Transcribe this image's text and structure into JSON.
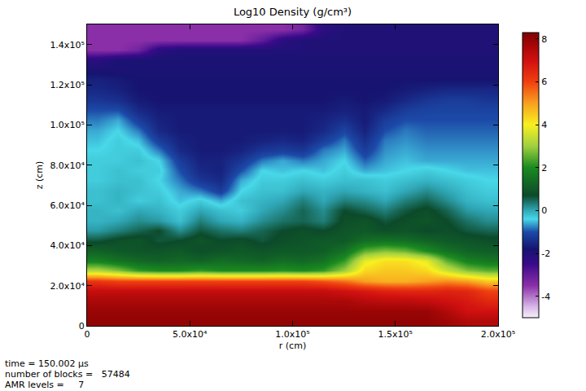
{
  "chart_data": {
    "type": "heatmap",
    "title": "Log10 Density (g/cm³)",
    "xlabel": "r (cm)",
    "ylabel": "z (cm)",
    "x": [
      5000,
      15000,
      25000,
      35000,
      45000,
      55000,
      65000,
      75000,
      85000,
      95000,
      105000,
      115000,
      125000,
      135000,
      145000,
      155000,
      165000,
      175000,
      185000,
      195000
    ],
    "y": [
      2500,
      7500,
      12500,
      17500,
      22500,
      27500,
      32500,
      37500,
      42500,
      47500,
      52500,
      57500,
      62500,
      67500,
      72500,
      77500,
      82500,
      87500,
      92500,
      97500,
      102500,
      107500,
      112500,
      117500,
      122500,
      127500,
      132500,
      137500,
      142500,
      147500
    ],
    "z": [
      [
        8.0,
        8.0,
        8.0,
        8.0,
        8.0,
        8.0,
        8.0,
        8.0,
        8.0,
        8.0,
        8.0,
        8.0,
        8.0,
        8.0,
        8.0,
        8.0,
        8.0,
        7.8,
        7.5,
        7.5
      ],
      [
        7.9,
        7.9,
        7.9,
        7.9,
        7.9,
        7.9,
        7.9,
        7.9,
        7.9,
        7.9,
        7.9,
        7.9,
        7.9,
        7.9,
        7.9,
        7.9,
        7.9,
        7.5,
        7.0,
        7.0
      ],
      [
        7.6,
        7.6,
        7.6,
        7.6,
        7.6,
        7.6,
        7.6,
        7.6,
        7.6,
        7.6,
        7.6,
        7.6,
        7.6,
        7.4,
        7.3,
        7.3,
        7.2,
        7.0,
        6.8,
        6.5
      ],
      [
        7.2,
        7.2,
        7.2,
        7.2,
        7.2,
        7.2,
        7.2,
        7.2,
        7.2,
        7.2,
        7.2,
        7.2,
        7.0,
        6.8,
        6.6,
        6.5,
        6.5,
        6.6,
        6.5,
        6.0
      ],
      [
        6.2,
        6.0,
        6.0,
        6.0,
        6.0,
        6.0,
        6.0,
        6.0,
        6.0,
        6.0,
        6.0,
        5.8,
        5.5,
        5.0,
        4.8,
        4.8,
        5.0,
        5.2,
        5.0,
        4.5
      ],
      [
        3.2,
        2.8,
        2.2,
        2.0,
        2.0,
        2.2,
        2.0,
        2.0,
        2.0,
        2.1,
        2.0,
        2.2,
        3.0,
        4.3,
        4.5,
        4.5,
        4.3,
        3.5,
        2.8,
        2.5
      ],
      [
        1.8,
        1.5,
        1.3,
        1.2,
        1.3,
        1.2,
        1.4,
        1.3,
        1.2,
        1.4,
        1.3,
        1.5,
        2.2,
        3.8,
        4.2,
        4.2,
        3.8,
        2.5,
        1.8,
        1.6
      ],
      [
        1.2,
        1.0,
        0.9,
        0.9,
        1.0,
        0.8,
        0.9,
        1.0,
        0.9,
        1.0,
        1.0,
        1.1,
        1.5,
        2.5,
        2.8,
        2.6,
        2.0,
        1.5,
        1.2,
        1.1
      ],
      [
        0.6,
        0.8,
        0.9,
        0.6,
        0.7,
        0.9,
        0.7,
        0.8,
        0.6,
        0.8,
        0.9,
        1.0,
        1.0,
        1.4,
        1.5,
        1.4,
        1.2,
        1.0,
        0.9,
        0.8
      ],
      [
        0.1,
        0.3,
        0.5,
        0.7,
        0.2,
        0.6,
        0.4,
        0.3,
        0.5,
        0.7,
        0.8,
        0.7,
        0.9,
        1.0,
        0.8,
        0.9,
        0.7,
        0.8,
        0.6,
        0.5
      ],
      [
        -0.1,
        0.0,
        0.2,
        0.1,
        -0.2,
        0.3,
        0.0,
        -0.1,
        0.2,
        0.4,
        0.5,
        0.3,
        0.8,
        0.9,
        0.6,
        0.8,
        0.9,
        0.7,
        0.4,
        0.2
      ],
      [
        -0.1,
        -0.2,
        0.0,
        -0.1,
        -0.3,
        0.0,
        -0.2,
        -0.3,
        0.0,
        0.2,
        0.5,
        0.2,
        0.7,
        0.5,
        0.3,
        0.6,
        0.8,
        0.5,
        0.1,
        0.0
      ],
      [
        -0.2,
        -0.1,
        -0.3,
        -0.2,
        -0.5,
        -0.3,
        -0.6,
        -0.2,
        -0.1,
        0.0,
        0.3,
        0.0,
        0.3,
        0.2,
        0.0,
        0.3,
        0.5,
        0.2,
        -0.1,
        -0.2
      ],
      [
        -0.2,
        -0.1,
        -0.2,
        -0.3,
        -0.6,
        -0.8,
        -1.2,
        -0.4,
        -0.2,
        -0.2,
        0.0,
        -0.1,
        0.0,
        -0.1,
        -0.2,
        0.0,
        0.2,
        0.0,
        -0.2,
        -0.3
      ],
      [
        -0.3,
        -0.2,
        -0.2,
        -0.4,
        -0.8,
        -1.3,
        -1.5,
        -0.6,
        -0.3,
        -0.3,
        -0.2,
        -0.3,
        -0.2,
        -0.2,
        -0.3,
        -0.2,
        -0.1,
        -0.2,
        -0.3,
        -0.4
      ],
      [
        -0.3,
        -0.2,
        -0.3,
        -0.3,
        -1.0,
        -1.5,
        -1.6,
        -1.0,
        -0.4,
        -0.5,
        -0.4,
        -0.5,
        -0.3,
        -0.6,
        -0.5,
        -0.4,
        -0.3,
        -0.4,
        -0.5,
        -0.5
      ],
      [
        -0.3,
        -0.3,
        -0.2,
        -0.4,
        -1.2,
        -1.6,
        -1.6,
        -1.3,
        -0.8,
        -0.6,
        -0.8,
        -0.6,
        -0.4,
        -0.9,
        -0.6,
        -0.5,
        -0.6,
        -0.6,
        -0.6,
        -0.6
      ],
      [
        -0.4,
        -0.3,
        -0.3,
        -0.8,
        -1.5,
        -1.7,
        -1.7,
        -1.6,
        -1.3,
        -1.2,
        -1.3,
        -0.8,
        -0.6,
        -1.2,
        -0.7,
        -0.6,
        -0.7,
        -0.7,
        -0.7,
        -0.7
      ],
      [
        -0.5,
        -0.3,
        -0.5,
        -1.2,
        -1.6,
        -1.7,
        -1.7,
        -1.7,
        -1.6,
        -1.5,
        -1.6,
        -1.2,
        -0.8,
        -1.4,
        -0.8,
        -0.7,
        -0.8,
        -0.8,
        -0.8,
        -0.8
      ],
      [
        -0.6,
        -0.4,
        -0.8,
        -1.5,
        -1.7,
        -1.7,
        -1.7,
        -1.7,
        -1.7,
        -1.7,
        -1.7,
        -1.5,
        -1.1,
        -1.6,
        -1.0,
        -0.8,
        -0.9,
        -0.9,
        -0.9,
        -0.9
      ],
      [
        -0.8,
        -0.6,
        -1.2,
        -1.6,
        -1.7,
        -1.7,
        -1.7,
        -1.7,
        -1.7,
        -1.7,
        -1.7,
        -1.6,
        -1.4,
        -1.7,
        -1.2,
        -1.0,
        -1.0,
        -1.0,
        -1.0,
        -1.0
      ],
      [
        -1.0,
        -1.0,
        -1.5,
        -1.7,
        -1.7,
        -1.7,
        -1.7,
        -1.7,
        -1.7,
        -1.7,
        -1.7,
        -1.7,
        -1.6,
        -1.7,
        -1.5,
        -1.2,
        -1.1,
        -1.1,
        -1.1,
        -1.1
      ],
      [
        -1.3,
        -1.4,
        -1.7,
        -1.8,
        -1.8,
        -1.8,
        -1.8,
        -1.8,
        -1.8,
        -1.8,
        -1.8,
        -1.8,
        -1.7,
        -1.8,
        -1.7,
        -1.5,
        -1.3,
        -1.2,
        -1.2,
        -1.3
      ],
      [
        -1.5,
        -1.6,
        -1.8,
        -1.8,
        -1.8,
        -1.8,
        -1.8,
        -1.8,
        -1.8,
        -1.8,
        -1.8,
        -1.8,
        -1.8,
        -1.8,
        -1.8,
        -1.7,
        -1.6,
        -1.5,
        -1.5,
        -1.5
      ],
      [
        -1.6,
        -1.7,
        -1.8,
        -1.8,
        -1.8,
        -1.8,
        -1.8,
        -1.8,
        -1.8,
        -1.8,
        -1.8,
        -1.8,
        -1.8,
        -1.8,
        -1.8,
        -1.8,
        -1.8,
        -1.8,
        -1.8,
        -1.8
      ],
      [
        -1.9,
        -1.9,
        -1.9,
        -1.9,
        -1.9,
        -1.9,
        -1.9,
        -1.9,
        -1.9,
        -1.9,
        -1.9,
        -1.9,
        -1.9,
        -1.9,
        -1.9,
        -1.9,
        -1.9,
        -1.9,
        -1.9,
        -1.9
      ],
      [
        -2.2,
        -1.9,
        -1.9,
        -1.9,
        -1.9,
        -1.9,
        -1.9,
        -1.9,
        -1.9,
        -1.9,
        -1.9,
        -1.9,
        -1.9,
        -1.9,
        -1.9,
        -1.9,
        -1.9,
        -1.9,
        -1.9,
        -1.9
      ],
      [
        -3.5,
        -3.5,
        -3.2,
        -2.2,
        -2.0,
        -2.0,
        -2.0,
        -2.0,
        -2.0,
        -2.0,
        -2.0,
        -2.0,
        -2.0,
        -2.0,
        -2.0,
        -2.0,
        -2.0,
        -2.0,
        -2.0,
        -2.0
      ],
      [
        -3.5,
        -3.5,
        -3.5,
        -3.5,
        -3.5,
        -3.5,
        -3.5,
        -3.5,
        -3.0,
        -2.2,
        -2.0,
        -2.0,
        -2.0,
        -2.0,
        -2.0,
        -2.0,
        -2.0,
        -2.0,
        -2.0,
        -2.0
      ],
      [
        -3.5,
        -3.5,
        -3.5,
        -3.5,
        -3.5,
        -3.5,
        -3.5,
        -3.5,
        -3.5,
        -3.5,
        -3.2,
        -2.2,
        -2.0,
        -2.0,
        -2.0,
        -2.0,
        -2.0,
        -2.0,
        -2.0,
        -2.0
      ]
    ],
    "xlim": [
      0,
      200000
    ],
    "ylim": [
      0,
      150000
    ],
    "xticks": [
      0,
      {
        "value": 50000,
        "label": "5.0x10⁴"
      },
      {
        "value": 100000,
        "label": "1.0x10⁵"
      },
      {
        "value": 150000,
        "label": "1.5x10⁵"
      },
      {
        "value": 200000,
        "label": "2.0x10⁵"
      }
    ],
    "yticks": [
      0,
      {
        "value": 20000,
        "label": "2.0x10⁴"
      },
      {
        "value": 40000,
        "label": "4.0x10⁴"
      },
      {
        "value": 60000,
        "label": "6.0x10⁴"
      },
      {
        "value": 80000,
        "label": "8.0x10⁴"
      },
      {
        "value": 100000,
        "label": "1.0x10⁵"
      },
      {
        "value": 120000,
        "label": "1.2x10⁵"
      },
      {
        "value": 140000,
        "label": "1.4x10⁵"
      }
    ],
    "zlim": [
      -5,
      8.3
    ],
    "zticks": [
      -4,
      -2,
      0,
      2,
      4,
      6,
      8
    ],
    "annotations": [
      "time = 150.002 µs",
      "number of blocks =   57484",
      "AMR levels =     7"
    ]
  }
}
